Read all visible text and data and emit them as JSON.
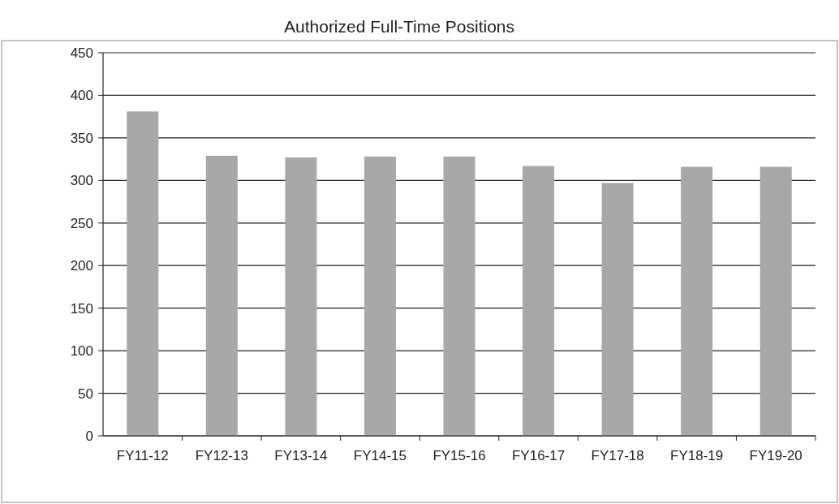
{
  "chart_data": {
    "type": "bar",
    "title": "Authorized Full-Time Positions",
    "categories": [
      "FY11-12",
      "FY12-13",
      "FY13-14",
      "FY14-15",
      "FY15-16",
      "FY16-17",
      "FY17-18",
      "FY18-19",
      "FY19-20"
    ],
    "values": [
      381,
      329,
      327,
      328,
      328,
      317,
      297,
      316,
      316
    ],
    "color": "#a8a8a8",
    "ylim": [
      0,
      450
    ],
    "yticks": [
      0,
      50,
      100,
      150,
      200,
      250,
      300,
      350,
      400,
      450
    ],
    "grid": "y"
  }
}
